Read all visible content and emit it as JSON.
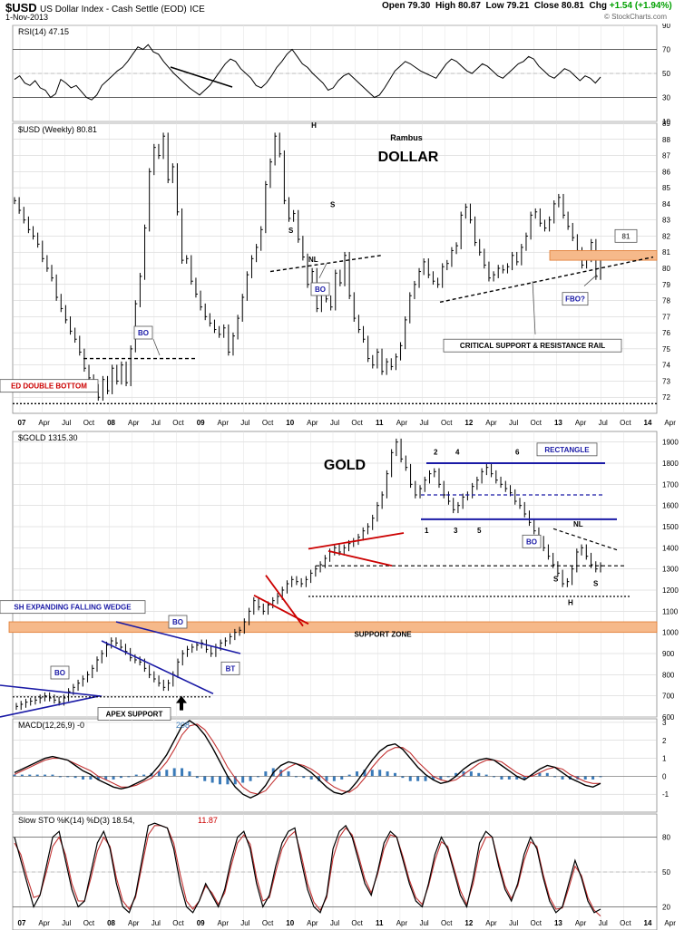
{
  "header": {
    "symbol": "$USD",
    "description": "US Dollar Index - Cash Settle (EOD)",
    "exchange": "ICE",
    "date": "1-Nov-2013",
    "open_label": "Open",
    "open": "79.30",
    "high_label": "High",
    "high": "80.87",
    "low_label": "Low",
    "low": "79.21",
    "close_label": "Close",
    "close": "80.81",
    "chg_label": "Chg",
    "chg": "+1.54 (+1.94%)",
    "source": "© StockCharts.com"
  },
  "colors": {
    "bar": "#000000",
    "blue_trend": "#1a1aa6",
    "red_trend": "#cc0000",
    "support_zone": "#f6b98a",
    "support_zone_border": "#e07a30",
    "macd_hist": "#3a7ab8",
    "signal": "#c33333",
    "grid": "#c8c8c8",
    "rsi_fill": "#3a8a3a"
  },
  "chart_data": [
    {
      "id": "rsi",
      "type": "line",
      "title": "RSI(14) 47.15",
      "ylim": [
        10,
        90
      ],
      "yticks": [
        90,
        70,
        50,
        30,
        10
      ],
      "guides": [
        70,
        30
      ],
      "values": [
        45,
        48,
        42,
        40,
        44,
        38,
        36,
        30,
        33,
        45,
        42,
        38,
        40,
        35,
        30,
        28,
        32,
        40,
        44,
        48,
        52,
        55,
        60,
        66,
        72,
        70,
        74,
        68,
        66,
        60,
        55,
        50,
        46,
        42,
        38,
        35,
        32,
        36,
        40,
        46,
        52,
        58,
        62,
        60,
        54,
        50,
        46,
        40,
        38,
        42,
        48,
        55,
        60,
        66,
        70,
        64,
        58,
        55,
        50,
        46,
        42,
        36,
        38,
        44,
        48,
        50,
        46,
        42,
        38,
        34,
        30,
        32,
        38,
        45,
        52,
        56,
        60,
        58,
        55,
        52,
        50,
        48,
        46,
        52,
        58,
        62,
        60,
        56,
        52,
        50,
        54,
        58,
        56,
        52,
        48,
        46,
        50,
        54,
        58,
        60,
        64,
        62,
        56,
        52,
        48,
        46,
        50,
        54,
        52,
        48,
        44,
        48,
        46,
        42,
        47
      ]
    },
    {
      "id": "usd",
      "type": "bar",
      "title": "$USD (Weekly) 80.81",
      "annotation_title": "Rambus",
      "panel_label": "DOLLAR",
      "ylim": [
        71,
        89
      ],
      "yticks": [
        89,
        88,
        87,
        86,
        85,
        84,
        83,
        82,
        81,
        80,
        79,
        78,
        77,
        76,
        75,
        74,
        73,
        72
      ],
      "x_ticks": [
        "07",
        "Apr",
        "Jul",
        "Oct",
        "08",
        "Apr",
        "Jul",
        "Oct",
        "09",
        "Apr",
        "Jul",
        "Oct",
        "10",
        "Apr",
        "Jul",
        "Oct",
        "11",
        "Apr",
        "Jul",
        "Oct",
        "12",
        "Apr",
        "Jul",
        "Oct",
        "13",
        "Apr",
        "Jul",
        "Oct",
        "14",
        "Apr"
      ],
      "closes": [
        84.2,
        83.6,
        83.0,
        82.4,
        82.0,
        81.5,
        80.6,
        80.0,
        79.4,
        78.2,
        77.5,
        76.8,
        76.1,
        75.6,
        74.8,
        73.8,
        73.2,
        72.6,
        72.0,
        73.1,
        72.4,
        73.8,
        73.0,
        74.0,
        72.9,
        75.0,
        77.8,
        79.5,
        82.5,
        86.0,
        87.5,
        87.0,
        88.2,
        85.5,
        86.3,
        83.5,
        80.5,
        80.6,
        79.2,
        78.4,
        77.6,
        77.0,
        76.6,
        76.2,
        75.9,
        76.3,
        74.8,
        75.8,
        76.9,
        78.2,
        79.6,
        80.6,
        81.3,
        82.4,
        85.2,
        86.6,
        88.2,
        87.1,
        84.2,
        83.1,
        83.4,
        81.8,
        80.7,
        79.0,
        79.8,
        77.5,
        78.7,
        78.1,
        77.6,
        79.7,
        79.1,
        80.8,
        78.3,
        76.9,
        76.2,
        75.6,
        74.4,
        74.0,
        74.8,
        73.6,
        74.2,
        73.9,
        74.5,
        75.2,
        76.8,
        78.3,
        79.0,
        79.8,
        80.4,
        79.6,
        79.2,
        79.0,
        80.1,
        80.3,
        81.1,
        81.4,
        83.3,
        83.8,
        83.0,
        81.6,
        81.0,
        80.2,
        79.4,
        79.6,
        80.0,
        79.9,
        80.1,
        80.8,
        80.4,
        81.3,
        82.0,
        83.3,
        83.5,
        82.8,
        82.5,
        83.0,
        84.0,
        84.4,
        83.3,
        82.6,
        81.9,
        81.1,
        80.2,
        80.6,
        81.6,
        79.5,
        80.9
      ]
    },
    {
      "id": "gold",
      "type": "bar",
      "title": "$GOLD 1315.30",
      "panel_label": "GOLD",
      "ylim": [
        600,
        1950
      ],
      "yticks": [
        1900,
        1800,
        1700,
        1600,
        1500,
        1400,
        1300,
        1200,
        1100,
        1000,
        900,
        800,
        700,
        600
      ],
      "closes": [
        650,
        660,
        670,
        675,
        680,
        690,
        700,
        690,
        680,
        670,
        690,
        720,
        740,
        760,
        780,
        800,
        830,
        870,
        900,
        940,
        960,
        950,
        930,
        910,
        880,
        870,
        860,
        830,
        800,
        780,
        760,
        740,
        760,
        800,
        860,
        900,
        920,
        930,
        940,
        950,
        920,
        900,
        930,
        950,
        960,
        980,
        1000,
        1010,
        1050,
        1100,
        1150,
        1120,
        1100,
        1130,
        1150,
        1170,
        1200,
        1230,
        1250,
        1240,
        1230,
        1250,
        1280,
        1300,
        1320,
        1350,
        1380,
        1400,
        1380,
        1400,
        1420,
        1430,
        1450,
        1480,
        1500,
        1540,
        1600,
        1650,
        1750,
        1850,
        1900,
        1820,
        1780,
        1700,
        1650,
        1680,
        1720,
        1750,
        1760,
        1700,
        1650,
        1620,
        1580,
        1600,
        1640,
        1650,
        1690,
        1720,
        1760,
        1780,
        1750,
        1720,
        1700,
        1680,
        1660,
        1620,
        1600,
        1560,
        1520,
        1480,
        1440,
        1400,
        1360,
        1320,
        1280,
        1230,
        1240,
        1300,
        1380,
        1400,
        1360,
        1320,
        1300,
        1315
      ]
    },
    {
      "id": "macd",
      "type": "line",
      "title": "MACD(12,26,9) -0",
      "title_value": "208",
      "ylim": [
        -2,
        3.2
      ],
      "yticks": [
        3,
        2,
        1,
        0,
        -1
      ],
      "macd": [
        0.2,
        0.4,
        0.6,
        0.8,
        1.0,
        1.1,
        1.0,
        0.9,
        0.6,
        0.3,
        0.1,
        -0.2,
        -0.4,
        -0.6,
        -0.7,
        -0.6,
        -0.4,
        -0.2,
        0.1,
        0.6,
        1.2,
        2.0,
        2.8,
        3.1,
        2.8,
        2.3,
        1.6,
        0.8,
        0.0,
        -0.6,
        -1.0,
        -1.2,
        -1.0,
        -0.5,
        0.2,
        0.6,
        0.8,
        0.7,
        0.5,
        0.2,
        -0.2,
        -0.6,
        -0.9,
        -1.0,
        -0.8,
        -0.3,
        0.3,
        0.9,
        1.4,
        1.7,
        1.8,
        1.5,
        1.0,
        0.5,
        0.1,
        -0.2,
        -0.4,
        -0.3,
        0.0,
        0.4,
        0.7,
        0.9,
        1.0,
        0.9,
        0.6,
        0.3,
        0.0,
        -0.2,
        0.1,
        0.4,
        0.6,
        0.5,
        0.2,
        -0.1,
        -0.3,
        -0.5,
        -0.6,
        -0.4
      ],
      "signal": [
        0.1,
        0.3,
        0.5,
        0.7,
        0.9,
        1.0,
        1.0,
        0.9,
        0.7,
        0.5,
        0.3,
        0.0,
        -0.2,
        -0.4,
        -0.6,
        -0.6,
        -0.5,
        -0.3,
        -0.1,
        0.3,
        0.8,
        1.5,
        2.3,
        2.8,
        2.9,
        2.6,
        2.0,
        1.3,
        0.5,
        -0.1,
        -0.6,
        -0.9,
        -1.0,
        -0.8,
        -0.3,
        0.2,
        0.5,
        0.7,
        0.6,
        0.4,
        0.1,
        -0.3,
        -0.6,
        -0.8,
        -0.9,
        -0.6,
        -0.1,
        0.5,
        1.0,
        1.4,
        1.6,
        1.6,
        1.3,
        0.8,
        0.4,
        0.0,
        -0.2,
        -0.3,
        -0.2,
        0.1,
        0.4,
        0.7,
        0.9,
        0.9,
        0.8,
        0.5,
        0.2,
        0.0,
        0.0,
        0.2,
        0.4,
        0.5,
        0.4,
        0.1,
        -0.1,
        -0.3,
        -0.4,
        -0.4
      ]
    },
    {
      "id": "sto",
      "type": "line",
      "title": "Slow STO %K(14) %D(3) 18.54,",
      "title_value": "11.87",
      "ylim": [
        0,
        100
      ],
      "yticks": [
        80,
        50,
        20
      ],
      "guides": [
        80,
        20
      ],
      "k": [
        80,
        60,
        40,
        20,
        30,
        55,
        80,
        85,
        60,
        35,
        20,
        25,
        50,
        75,
        85,
        70,
        40,
        20,
        15,
        30,
        60,
        90,
        92,
        90,
        88,
        70,
        40,
        20,
        15,
        25,
        40,
        30,
        20,
        35,
        60,
        80,
        85,
        70,
        40,
        20,
        30,
        55,
        75,
        85,
        88,
        60,
        35,
        20,
        15,
        30,
        70,
        85,
        90,
        80,
        60,
        40,
        30,
        50,
        75,
        85,
        80,
        60,
        40,
        25,
        20,
        40,
        65,
        80,
        70,
        50,
        30,
        20,
        45,
        75,
        85,
        80,
        55,
        35,
        25,
        40,
        65,
        80,
        70,
        45,
        25,
        15,
        20,
        40,
        60,
        45,
        25,
        15,
        18
      ],
      "d": [
        75,
        65,
        45,
        28,
        30,
        50,
        72,
        80,
        65,
        40,
        25,
        25,
        45,
        68,
        80,
        72,
        45,
        25,
        18,
        28,
        55,
        82,
        90,
        90,
        88,
        75,
        48,
        25,
        18,
        25,
        38,
        32,
        22,
        32,
        55,
        75,
        82,
        74,
        45,
        25,
        28,
        50,
        70,
        80,
        85,
        65,
        40,
        24,
        17,
        28,
        62,
        80,
        88,
        82,
        64,
        44,
        32,
        48,
        70,
        82,
        80,
        63,
        43,
        28,
        22,
        38,
        60,
        76,
        72,
        53,
        34,
        22,
        40,
        68,
        80,
        80,
        58,
        38,
        27,
        38,
        60,
        76,
        72,
        48,
        28,
        18,
        19,
        36,
        55,
        47,
        28,
        17,
        12
      ]
    }
  ],
  "annotations": {
    "usd": {
      "h_label": "H",
      "s_left": "S",
      "s_right": "S",
      "nl": "NL",
      "bo1": "BO",
      "bo2": "BO",
      "double_bottom": "ED DOUBLE BOTTOM",
      "critical": "CRITICAL SUPPORT & RESISTANCE RAIL",
      "fbo": "FBO?",
      "b1": "81"
    },
    "gold": {
      "rectangle": "RECTANGLE",
      "n2": "2",
      "n4": "4",
      "n6": "6",
      "n1": "1",
      "n3": "3",
      "n5": "5",
      "bo_rect": "BO",
      "nl": "NL",
      "s1": "S",
      "s2": "S",
      "h": "H",
      "wedge": "SH EXPANDING FALLING WEDGE",
      "support_zone": "SUPPORT ZONE",
      "bo_a": "BO",
      "bo_b": "BO",
      "bt": "BT",
      "apex": "APEX SUPPORT"
    }
  }
}
